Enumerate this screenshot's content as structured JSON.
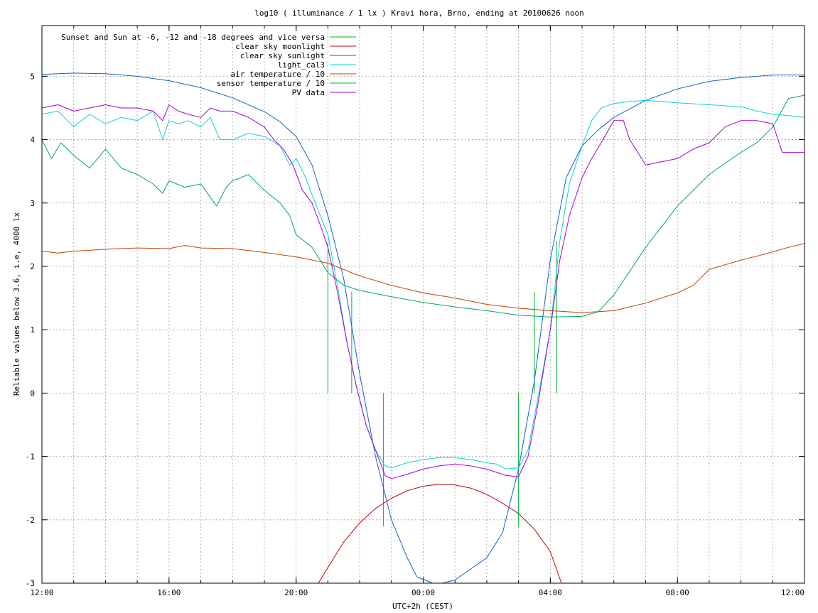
{
  "chart_data": {
    "type": "line",
    "title": "log10 ( illuminance / 1 lx ) Kravi hora, Brno, ending at 20100626 noon",
    "xlabel": "UTC+2h (CEST)",
    "ylabel": "Reliable values below 3.6, i.e, 4000 lx",
    "xlim": [
      0,
      24
    ],
    "ylim": [
      -3,
      5.8
    ],
    "grid": true,
    "legend_position": "top-right",
    "x_ticks": [
      {
        "value": 0,
        "label": "12:00"
      },
      {
        "value": 4,
        "label": "16:00"
      },
      {
        "value": 8,
        "label": "20:00"
      },
      {
        "value": 12,
        "label": "00:00"
      },
      {
        "value": 16,
        "label": "04:00"
      },
      {
        "value": 20,
        "label": "08:00"
      },
      {
        "value": 24,
        "label": "12:00"
      }
    ],
    "y_ticks": [
      {
        "value": -3,
        "label": "-3"
      },
      {
        "value": -2,
        "label": "-2"
      },
      {
        "value": -1,
        "label": "-1"
      },
      {
        "value": 0,
        "label": "0"
      },
      {
        "value": 1,
        "label": "1"
      },
      {
        "value": 2,
        "label": "2"
      },
      {
        "value": 3,
        "label": "3"
      },
      {
        "value": 4,
        "label": "4"
      },
      {
        "value": 5,
        "label": "5"
      }
    ],
    "series": [
      {
        "name": "Sunset and Sun at -6, -12 and -18 degrees and vice versa",
        "color": "#00b030",
        "kind": "vlines",
        "lines": [
          [
            9.0,
            0,
            2.4
          ],
          [
            9.75,
            0,
            1.6
          ],
          [
            10.75,
            -2.1,
            0
          ],
          [
            15.0,
            -2.1,
            0
          ],
          [
            15.5,
            0,
            1.6
          ],
          [
            16.2,
            0,
            2.4
          ]
        ]
      },
      {
        "name": "clear sky moonlight",
        "color": "#c00000",
        "x": [
          8.7,
          9.0,
          9.5,
          10.0,
          10.5,
          11.0,
          11.5,
          12.0,
          12.5,
          13.0,
          13.5,
          14.0,
          14.5,
          15.0,
          15.5,
          16.0,
          16.35
        ],
        "y": [
          -3.0,
          -2.75,
          -2.35,
          -2.05,
          -1.82,
          -1.66,
          -1.54,
          -1.47,
          -1.44,
          -1.45,
          -1.5,
          -1.6,
          -1.74,
          -1.9,
          -2.15,
          -2.5,
          -3.0
        ]
      },
      {
        "name": "clear sky sunlight",
        "color": "#1060d0",
        "x": [
          0,
          1,
          2,
          3,
          4,
          5,
          6,
          7,
          7.5,
          8,
          8.5,
          9,
          9.5,
          10,
          10.5,
          11,
          11.5,
          11.8,
          12.3,
          12.6,
          13,
          14,
          14.5,
          15,
          15.5,
          16,
          16.5,
          17,
          17.5,
          18,
          19,
          20,
          21,
          22,
          23,
          24
        ],
        "y": [
          5.03,
          5.05,
          5.04,
          5.0,
          4.93,
          4.82,
          4.66,
          4.44,
          4.28,
          4.05,
          3.6,
          2.8,
          1.8,
          0.3,
          -1.0,
          -2.0,
          -2.6,
          -2.9,
          -3.0,
          -3.0,
          -2.95,
          -2.6,
          -2.2,
          -1.2,
          0.2,
          2.1,
          3.4,
          3.9,
          4.15,
          4.35,
          4.62,
          4.8,
          4.92,
          4.98,
          5.02,
          5.02
        ]
      },
      {
        "name": "light_cal3",
        "color": "#10d0d0",
        "x": [
          0,
          0.5,
          1,
          1.5,
          2,
          2.5,
          3,
          3.5,
          3.8,
          4,
          4.3,
          4.6,
          5,
          5.3,
          5.6,
          6,
          6.5,
          7,
          7.5,
          7.8,
          8,
          8.3,
          8.6,
          9,
          9.3,
          9.6,
          9.9,
          10.2,
          10.5,
          10.8,
          11,
          11.5,
          12,
          12.5,
          13,
          13.5,
          14,
          14.3,
          14.6,
          15,
          15.3,
          15.6,
          16,
          16.3,
          16.6,
          17,
          17.3,
          17.6,
          18,
          18.5,
          19,
          19.5,
          20,
          21,
          22,
          22.5,
          23,
          23.5,
          24
        ],
        "y": [
          4.4,
          4.45,
          4.2,
          4.4,
          4.25,
          4.35,
          4.3,
          4.45,
          4.0,
          4.3,
          4.25,
          4.3,
          4.2,
          4.35,
          4.0,
          4.0,
          4.1,
          4.05,
          3.9,
          3.6,
          3.7,
          3.4,
          3.0,
          2.5,
          1.7,
          0.8,
          0.1,
          -0.5,
          -0.9,
          -1.15,
          -1.18,
          -1.1,
          -1.05,
          -1.02,
          -1.02,
          -1.05,
          -1.1,
          -1.12,
          -1.2,
          -1.18,
          -0.9,
          -0.1,
          1.0,
          2.4,
          3.3,
          3.9,
          4.3,
          4.5,
          4.57,
          4.6,
          4.62,
          4.6,
          4.58,
          4.55,
          4.52,
          4.45,
          4.4,
          4.38,
          4.35
        ]
      },
      {
        "name": "air temperature / 10",
        "color": "#c04000",
        "x": [
          0,
          0.5,
          1,
          2,
          3,
          4,
          4.5,
          5,
          6,
          7,
          8,
          9,
          10,
          11,
          12,
          13,
          14,
          15,
          16,
          17,
          18,
          19,
          20,
          20.5,
          21,
          22,
          22.5,
          23,
          23.5,
          24
        ],
        "y": [
          2.24,
          2.21,
          2.24,
          2.27,
          2.29,
          2.28,
          2.33,
          2.29,
          2.28,
          2.22,
          2.15,
          2.05,
          1.85,
          1.7,
          1.58,
          1.5,
          1.4,
          1.34,
          1.3,
          1.27,
          1.3,
          1.42,
          1.58,
          1.7,
          1.95,
          2.1,
          2.16,
          2.23,
          2.3,
          2.36
        ]
      },
      {
        "name": "sensor temperature / 10",
        "color": "#00a860",
        "x": [
          0,
          0.3,
          0.6,
          1,
          1.5,
          2,
          2.5,
          3,
          3.5,
          3.8,
          4,
          4.5,
          5,
          5.5,
          5.8,
          6,
          6.5,
          7,
          7.5,
          7.8,
          8,
          8.5,
          9,
          9.5,
          10,
          11,
          12,
          13,
          14,
          15,
          16,
          17,
          17.5,
          18,
          19,
          20,
          21,
          22,
          22.5,
          23,
          23.5,
          24
        ],
        "y": [
          4.0,
          3.7,
          3.95,
          3.75,
          3.55,
          3.85,
          3.55,
          3.45,
          3.3,
          3.15,
          3.35,
          3.25,
          3.3,
          2.95,
          3.25,
          3.35,
          3.45,
          3.2,
          3.0,
          2.8,
          2.5,
          2.3,
          1.9,
          1.7,
          1.62,
          1.52,
          1.43,
          1.36,
          1.3,
          1.23,
          1.2,
          1.21,
          1.28,
          1.55,
          2.3,
          2.95,
          3.45,
          3.8,
          3.95,
          4.2,
          4.65,
          4.7
        ]
      },
      {
        "name": "PV data",
        "color": "#a000e0",
        "x": [
          0,
          0.5,
          1,
          1.5,
          2,
          2.5,
          3,
          3.5,
          3.8,
          4,
          4.3,
          4.6,
          5,
          5.3,
          5.6,
          6,
          6.5,
          7,
          7.3,
          7.6,
          7.9,
          8.2,
          8.5,
          8.8,
          9,
          9.3,
          9.6,
          9.9,
          10.2,
          10.5,
          10.8,
          11,
          11.5,
          12,
          12.5,
          13,
          13.5,
          14,
          14.3,
          14.6,
          15,
          15.3,
          15.6,
          16,
          16.3,
          16.6,
          17,
          17.3,
          17.6,
          18,
          18.3,
          18.5,
          19,
          19.5,
          20,
          20.5,
          21,
          21.5,
          22,
          22.5,
          23,
          23.3,
          23.5,
          24
        ],
        "y": [
          4.5,
          4.55,
          4.45,
          4.5,
          4.55,
          4.5,
          4.5,
          4.45,
          4.3,
          4.55,
          4.45,
          4.4,
          4.35,
          4.5,
          4.45,
          4.45,
          4.35,
          4.2,
          4.0,
          3.85,
          3.6,
          3.2,
          3.0,
          2.6,
          2.3,
          1.6,
          0.8,
          0.1,
          -0.5,
          -0.9,
          -1.3,
          -1.35,
          -1.28,
          -1.2,
          -1.15,
          -1.12,
          -1.15,
          -1.2,
          -1.25,
          -1.3,
          -1.32,
          -1.0,
          -0.2,
          1.0,
          2.1,
          2.8,
          3.4,
          3.7,
          3.95,
          4.3,
          4.3,
          4.0,
          3.6,
          3.65,
          3.7,
          3.85,
          3.95,
          4.2,
          4.3,
          4.3,
          4.25,
          3.8,
          3.8,
          3.8
        ]
      }
    ]
  }
}
